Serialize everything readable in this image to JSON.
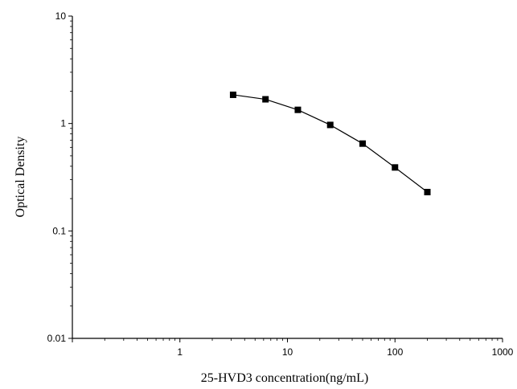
{
  "chart_data": {
    "type": "line",
    "title": "",
    "xlabel": "25-HVD3 concentration(ng/mL)",
    "ylabel": "Optical Density",
    "xscale": "log",
    "yscale": "log",
    "xlim": [
      0.1,
      1000
    ],
    "ylim": [
      0.01,
      10
    ],
    "x_ticks": [
      "1",
      "10",
      "100",
      "1000"
    ],
    "y_ticks": [
      "0.01",
      "0.1",
      "1",
      "10"
    ],
    "grid": false,
    "legend": "none",
    "markers": "square",
    "line_color": "#000000",
    "series": [
      {
        "x": [
          3.125,
          6.25,
          12.5,
          25,
          50,
          100,
          200
        ],
        "y": [
          1.85,
          1.68,
          1.34,
          0.97,
          0.65,
          0.39,
          0.23
        ]
      }
    ]
  }
}
